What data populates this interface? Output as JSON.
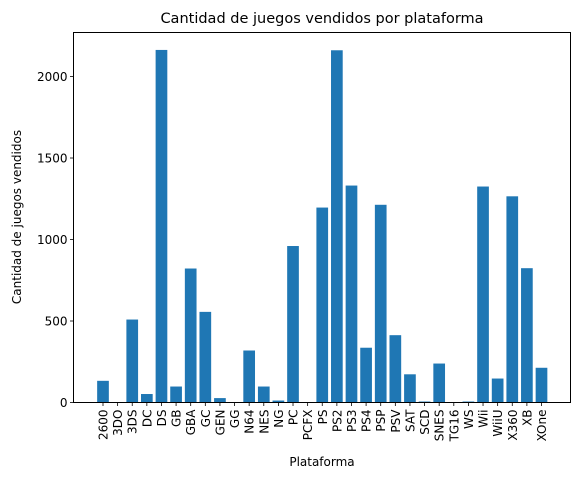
{
  "chart_data": {
    "type": "bar",
    "title": "Cantidad de juegos vendidos por plataforma",
    "xlabel": "Plataforma",
    "ylabel": "Cantidad de juegos vendidos",
    "ylim": [
      0,
      2270
    ],
    "yticks": [
      0,
      500,
      1000,
      1500,
      2000
    ],
    "grid": false,
    "bar_color": "#1f77b4",
    "categories": [
      "2600",
      "3DO",
      "3DS",
      "DC",
      "DS",
      "GB",
      "GBA",
      "GC",
      "GEN",
      "GG",
      "N64",
      "NES",
      "NG",
      "PC",
      "PCFX",
      "PS",
      "PS2",
      "PS3",
      "PS4",
      "PSP",
      "PSV",
      "SAT",
      "SCD",
      "SNES",
      "TG16",
      "WS",
      "Wii",
      "WiiU",
      "X360",
      "XB",
      "XOne"
    ],
    "values": [
      133,
      3,
      509,
      52,
      2163,
      98,
      822,
      556,
      27,
      1,
      319,
      98,
      12,
      960,
      1,
      1196,
      2161,
      1331,
      336,
      1213,
      413,
      173,
      6,
      239,
      2,
      6,
      1325,
      147,
      1265,
      824,
      213
    ]
  }
}
